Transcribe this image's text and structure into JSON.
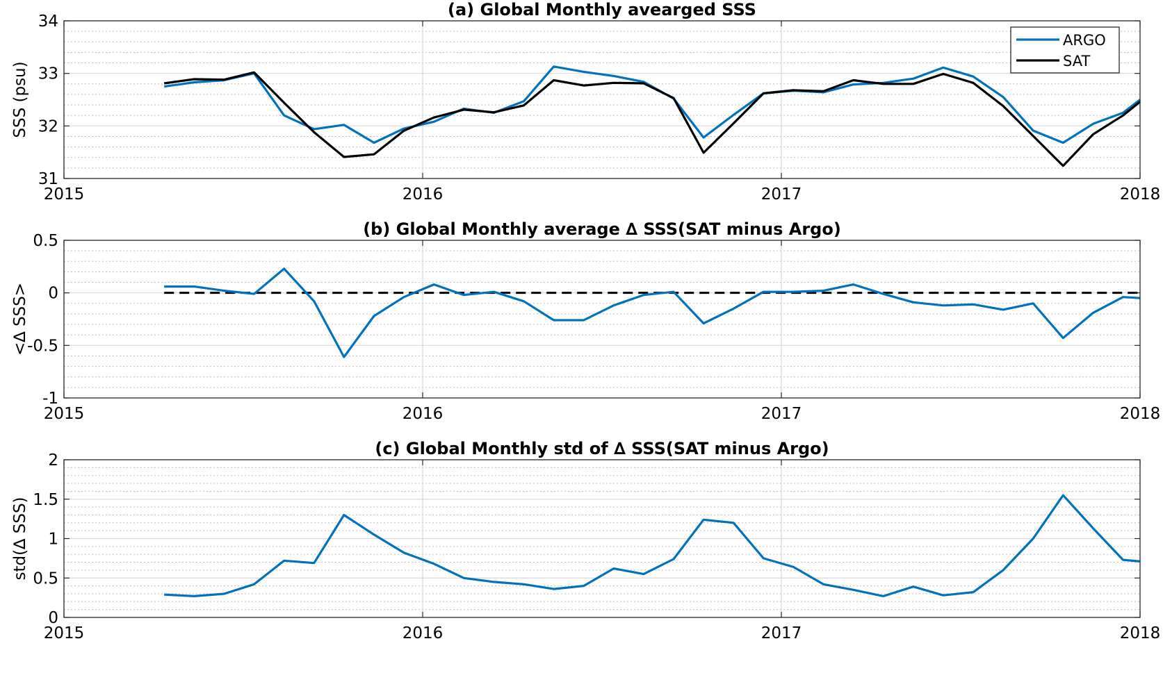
{
  "colors": {
    "argo": "#0072BD",
    "sat": "#000000",
    "axis": "#262626",
    "grid_major": "#d9d9d9",
    "grid_minor": "#bdbdbd",
    "background": "#ffffff"
  },
  "chart_data": [
    {
      "type": "line",
      "title": "(a) Global Monthly avearged SSS",
      "xlabel": "",
      "ylabel": "SSS (psu)",
      "xlim": [
        2015,
        2018
      ],
      "ylim": [
        31,
        34
      ],
      "xticks": [
        2015,
        2016,
        2017,
        2018
      ],
      "xtick_labels": [
        "2015",
        "2016",
        "2017",
        "2018"
      ],
      "yticks": [
        31,
        32,
        33,
        34
      ],
      "ytick_labels": [
        "31",
        "32",
        "33",
        "34"
      ],
      "minor_grid_step": 0.2,
      "grid": true,
      "legend": {
        "placement": "top-right",
        "entries": [
          "ARGO",
          "SAT"
        ]
      },
      "x": [
        2015.2795,
        2015.3631,
        2015.4466,
        2015.5301,
        2015.6137,
        2015.6972,
        2015.7807,
        2015.8643,
        2015.9478,
        2016.0313,
        2016.1149,
        2016.1984,
        2016.2819,
        2016.3655,
        2016.449,
        2016.5325,
        2016.6161,
        2016.6996,
        2016.7831,
        2016.8667,
        2016.9502,
        2017.0337,
        2017.1173,
        2017.2008,
        2017.2843,
        2017.3679,
        2017.4514,
        2017.5349,
        2017.6185,
        2017.702,
        2017.7855,
        2017.8691,
        2017.9526,
        2018.0
      ],
      "series": [
        {
          "name": "ARGO",
          "color": "#0072BD",
          "values": [
            32.75,
            32.83,
            32.87,
            33.0,
            32.2,
            31.94,
            32.02,
            31.68,
            31.95,
            32.08,
            32.33,
            32.25,
            32.47,
            33.13,
            33.03,
            32.95,
            32.84,
            32.52,
            31.78,
            32.21,
            32.62,
            32.67,
            32.64,
            32.79,
            32.82,
            32.9,
            33.11,
            32.94,
            32.55,
            31.91,
            31.68,
            32.04,
            32.25,
            32.5
          ]
        },
        {
          "name": "SAT",
          "color": "#000000",
          "values": [
            32.81,
            32.89,
            32.88,
            33.02,
            32.44,
            31.88,
            31.41,
            31.46,
            31.91,
            32.16,
            32.31,
            32.26,
            32.39,
            32.87,
            32.77,
            32.82,
            32.81,
            32.53,
            31.49,
            32.05,
            32.62,
            32.68,
            32.66,
            32.87,
            32.8,
            32.8,
            32.99,
            32.82,
            32.38,
            31.81,
            31.24,
            31.84,
            32.2,
            32.46
          ]
        }
      ]
    },
    {
      "type": "line",
      "title": "(b) Global Monthly average ∆ SSS(SAT minus Argo)",
      "xlabel": "",
      "ylabel": "<∆ SSS>",
      "xlim": [
        2015,
        2018
      ],
      "ylim": [
        -1,
        0.5
      ],
      "xticks": [
        2015,
        2016,
        2017,
        2018
      ],
      "xtick_labels": [
        "2015",
        "2016",
        "2017",
        "2018"
      ],
      "yticks": [
        -1,
        -0.5,
        0,
        0.5
      ],
      "ytick_labels": [
        "-1",
        "-0.5",
        "0",
        "0.5"
      ],
      "minor_grid_step": 0.1,
      "grid": true,
      "reference_line": {
        "y": 0,
        "style": "dashed",
        "x_start": 2015.2795,
        "x_end": 2018.0
      },
      "x": [
        2015.2795,
        2015.3631,
        2015.4466,
        2015.5301,
        2015.6137,
        2015.6972,
        2015.7807,
        2015.8643,
        2015.9478,
        2016.0313,
        2016.1149,
        2016.1984,
        2016.2819,
        2016.3655,
        2016.449,
        2016.5325,
        2016.6161,
        2016.6996,
        2016.7831,
        2016.8667,
        2016.9502,
        2017.0337,
        2017.1173,
        2017.2008,
        2017.2843,
        2017.3679,
        2017.4514,
        2017.5349,
        2017.6185,
        2017.702,
        2017.7855,
        2017.8691,
        2017.9526,
        2018.0
      ],
      "series": [
        {
          "color": "#0072BD",
          "values": [
            0.06,
            0.06,
            0.02,
            -0.01,
            0.23,
            -0.08,
            -0.61,
            -0.22,
            -0.04,
            0.08,
            -0.02,
            0.01,
            -0.08,
            -0.26,
            -0.26,
            -0.12,
            -0.02,
            0.01,
            -0.29,
            -0.15,
            0.01,
            0.01,
            0.02,
            0.08,
            -0.01,
            -0.09,
            -0.12,
            -0.11,
            -0.16,
            -0.1,
            -0.43,
            -0.19,
            -0.04,
            -0.05
          ]
        }
      ]
    },
    {
      "type": "line",
      "title": "(c) Global Monthly std of ∆ SSS(SAT minus Argo)",
      "xlabel": "",
      "ylabel": "std(∆ SSS)",
      "xlim": [
        2015,
        2018
      ],
      "ylim": [
        0,
        2
      ],
      "xticks": [
        2015,
        2016,
        2017,
        2018
      ],
      "xtick_labels": [
        "2015",
        "2016",
        "2017",
        "2018"
      ],
      "yticks": [
        0,
        0.5,
        1,
        1.5,
        2
      ],
      "ytick_labels": [
        "0",
        "0.5",
        "1",
        "1.5",
        "2"
      ],
      "minor_grid_step": 0.1,
      "grid": true,
      "x": [
        2015.2795,
        2015.3631,
        2015.4466,
        2015.5301,
        2015.6137,
        2015.6972,
        2015.7807,
        2015.8643,
        2015.9478,
        2016.0313,
        2016.1149,
        2016.1984,
        2016.2819,
        2016.3655,
        2016.449,
        2016.5325,
        2016.6161,
        2016.6996,
        2016.7831,
        2016.8667,
        2016.9502,
        2017.0337,
        2017.1173,
        2017.2008,
        2017.2843,
        2017.3679,
        2017.4514,
        2017.5349,
        2017.6185,
        2017.702,
        2017.7855,
        2017.8691,
        2017.9526,
        2018.0
      ],
      "series": [
        {
          "color": "#0072BD",
          "values": [
            0.29,
            0.27,
            0.3,
            0.42,
            0.72,
            0.69,
            1.3,
            1.05,
            0.82,
            0.68,
            0.5,
            0.45,
            0.42,
            0.36,
            0.4,
            0.62,
            0.55,
            0.74,
            1.24,
            1.2,
            0.75,
            0.64,
            0.42,
            0.35,
            0.27,
            0.39,
            0.28,
            0.32,
            0.6,
            1.0,
            1.55,
            1.13,
            0.73,
            0.71
          ]
        }
      ]
    }
  ]
}
